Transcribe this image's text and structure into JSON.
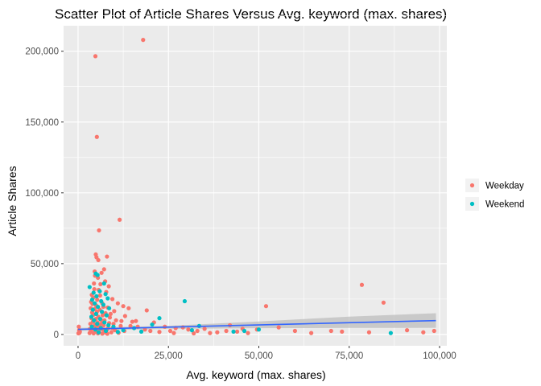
{
  "chart_data": {
    "type": "scatter",
    "title": "Scatter Plot of Article Shares Versus Avg. keyword (max. shares)",
    "xlabel": "Avg. keyword (max. shares)",
    "ylabel": "Article Shares",
    "xlim": [
      -4000,
      102000
    ],
    "ylim": [
      -8000,
      218000
    ],
    "x_ticks": [
      0,
      25000,
      50000,
      75000,
      100000
    ],
    "x_tick_labels": [
      "0",
      "25,000",
      "50,000",
      "75,000",
      "100,000"
    ],
    "y_ticks": [
      0,
      50000,
      100000,
      150000,
      200000
    ],
    "y_tick_labels": [
      "0",
      "50,000",
      "100,000",
      "150,000",
      "200,000"
    ],
    "grid": true,
    "legend_position": "right",
    "series": [
      {
        "name": "Weekday",
        "color": "#F8766D",
        "points": [
          [
            18000,
            208000
          ],
          [
            4800,
            196500
          ],
          [
            5200,
            139500
          ],
          [
            11500,
            81000
          ],
          [
            5800,
            73500
          ],
          [
            4900,
            56500
          ],
          [
            5100,
            54500
          ],
          [
            8000,
            55000
          ],
          [
            5600,
            52500
          ],
          [
            7200,
            46000
          ],
          [
            4600,
            44500
          ],
          [
            6500,
            43500
          ],
          [
            4700,
            41500
          ],
          [
            5500,
            40000
          ],
          [
            7500,
            37500
          ],
          [
            4400,
            36000
          ],
          [
            6200,
            35500
          ],
          [
            8500,
            34000
          ],
          [
            4500,
            32000
          ],
          [
            5700,
            31500
          ],
          [
            7800,
            30000
          ],
          [
            3800,
            28000
          ],
          [
            6100,
            27500
          ],
          [
            4200,
            26000
          ],
          [
            9500,
            25000
          ],
          [
            5300,
            24500
          ],
          [
            3600,
            23000
          ],
          [
            6700,
            22000
          ],
          [
            4000,
            21500
          ],
          [
            11000,
            22000
          ],
          [
            5000,
            20500
          ],
          [
            7000,
            19500
          ],
          [
            8200,
            19000
          ],
          [
            12500,
            20000
          ],
          [
            3500,
            18500
          ],
          [
            4600,
            18000
          ],
          [
            6000,
            17500
          ],
          [
            14000,
            18500
          ],
          [
            10000,
            16500
          ],
          [
            5200,
            16000
          ],
          [
            3900,
            15500
          ],
          [
            7600,
            15000
          ],
          [
            9000,
            14500
          ],
          [
            4300,
            14000
          ],
          [
            6800,
            13500
          ],
          [
            13000,
            13000
          ],
          [
            5600,
            12500
          ],
          [
            8800,
            12000
          ],
          [
            3700,
            11500
          ],
          [
            4900,
            11000
          ],
          [
            6300,
            10500
          ],
          [
            7300,
            10000
          ],
          [
            10500,
            10000
          ],
          [
            12000,
            9500
          ],
          [
            15000,
            9000
          ],
          [
            4100,
            9000
          ],
          [
            5400,
            8500
          ],
          [
            6600,
            8000
          ],
          [
            8600,
            8000
          ],
          [
            9800,
            7500
          ],
          [
            3400,
            7500
          ],
          [
            4700,
            7000
          ],
          [
            5900,
            6500
          ],
          [
            7100,
            6500
          ],
          [
            11800,
            6000
          ],
          [
            14500,
            6000
          ],
          [
            16500,
            5500
          ],
          [
            4000,
            5500
          ],
          [
            5100,
            5000
          ],
          [
            6200,
            5000
          ],
          [
            8300,
            4500
          ],
          [
            9600,
            4500
          ],
          [
            3300,
            4000
          ],
          [
            4500,
            4000
          ],
          [
            5700,
            3500
          ],
          [
            6900,
            3500
          ],
          [
            7900,
            3000
          ],
          [
            10200,
            3000
          ],
          [
            12800,
            2500
          ],
          [
            3600,
            2500
          ],
          [
            4800,
            2000
          ],
          [
            5800,
            2000
          ],
          [
            7400,
            1500
          ],
          [
            9200,
            1500
          ],
          [
            11200,
            1200
          ],
          [
            3200,
            1000
          ],
          [
            4300,
            800
          ],
          [
            5500,
            800
          ],
          [
            6700,
            600
          ],
          [
            8100,
            500
          ],
          [
            200,
            5500
          ],
          [
            300,
            3000
          ],
          [
            400,
            1200
          ],
          [
            100,
            800
          ],
          [
            500,
            2000
          ],
          [
            19000,
            17000
          ],
          [
            16000,
            9500
          ],
          [
            21000,
            8500
          ],
          [
            24000,
            5500
          ],
          [
            27000,
            4500
          ],
          [
            30500,
            3500
          ],
          [
            33000,
            2500
          ],
          [
            35000,
            4000
          ],
          [
            38500,
            1500
          ],
          [
            41000,
            2500
          ],
          [
            42000,
            6500
          ],
          [
            44000,
            2000
          ],
          [
            47000,
            1000
          ],
          [
            49500,
            3500
          ],
          [
            52000,
            20000
          ],
          [
            55500,
            5000
          ],
          [
            60000,
            2500
          ],
          [
            64500,
            1000
          ],
          [
            70000,
            2500
          ],
          [
            73000,
            2000
          ],
          [
            78500,
            35000
          ],
          [
            80500,
            1500
          ],
          [
            84500,
            22500
          ],
          [
            91000,
            3000
          ],
          [
            95500,
            1500
          ],
          [
            98500,
            2500
          ],
          [
            25500,
            2500
          ],
          [
            29000,
            5000
          ],
          [
            36500,
            1000
          ],
          [
            45500,
            4000
          ],
          [
            18500,
            3500
          ],
          [
            20000,
            2500
          ],
          [
            22500,
            1800
          ],
          [
            26500,
            1000
          ],
          [
            32000,
            800
          ]
        ]
      },
      {
        "name": "Weekend",
        "color": "#00BFC4",
        "points": [
          [
            3200,
            33500
          ],
          [
            4900,
            43000
          ],
          [
            5400,
            42000
          ],
          [
            7200,
            36000
          ],
          [
            6000,
            30500
          ],
          [
            4300,
            29500
          ],
          [
            7600,
            28500
          ],
          [
            5100,
            27000
          ],
          [
            8200,
            25500
          ],
          [
            3900,
            24500
          ],
          [
            6400,
            23500
          ],
          [
            4600,
            22000
          ],
          [
            7000,
            21000
          ],
          [
            5500,
            19500
          ],
          [
            8600,
            18500
          ],
          [
            4100,
            17500
          ],
          [
            6600,
            16000
          ],
          [
            5000,
            14500
          ],
          [
            7900,
            13500
          ],
          [
            3700,
            12500
          ],
          [
            6100,
            11000
          ],
          [
            4400,
            10000
          ],
          [
            7300,
            8500
          ],
          [
            5300,
            7500
          ],
          [
            8400,
            6500
          ],
          [
            3800,
            5500
          ],
          [
            6300,
            4500
          ],
          [
            4800,
            3500
          ],
          [
            7700,
            2500
          ],
          [
            5700,
            1500
          ],
          [
            9800,
            5500
          ],
          [
            12500,
            3000
          ],
          [
            17500,
            2000
          ],
          [
            20500,
            7000
          ],
          [
            22500,
            11500
          ],
          [
            29500,
            23500
          ],
          [
            31500,
            3000
          ],
          [
            33500,
            6000
          ],
          [
            43000,
            2000
          ],
          [
            46000,
            2500
          ],
          [
            50000,
            3500
          ],
          [
            86500,
            1000
          ],
          [
            15500,
            4500
          ],
          [
            11000,
            1800
          ]
        ]
      }
    ],
    "trend_line": {
      "color": "#3366FF",
      "band_color": "#BEBEBE",
      "points": [
        [
          0,
          3600
        ],
        [
          99000,
          9800
        ]
      ],
      "band": [
        [
          0,
          4600,
          2600
        ],
        [
          25000,
          6100,
          4000
        ],
        [
          50000,
          9200,
          4400
        ],
        [
          75000,
          12600,
          4600
        ],
        [
          99000,
          15000,
          4700
        ]
      ]
    }
  }
}
